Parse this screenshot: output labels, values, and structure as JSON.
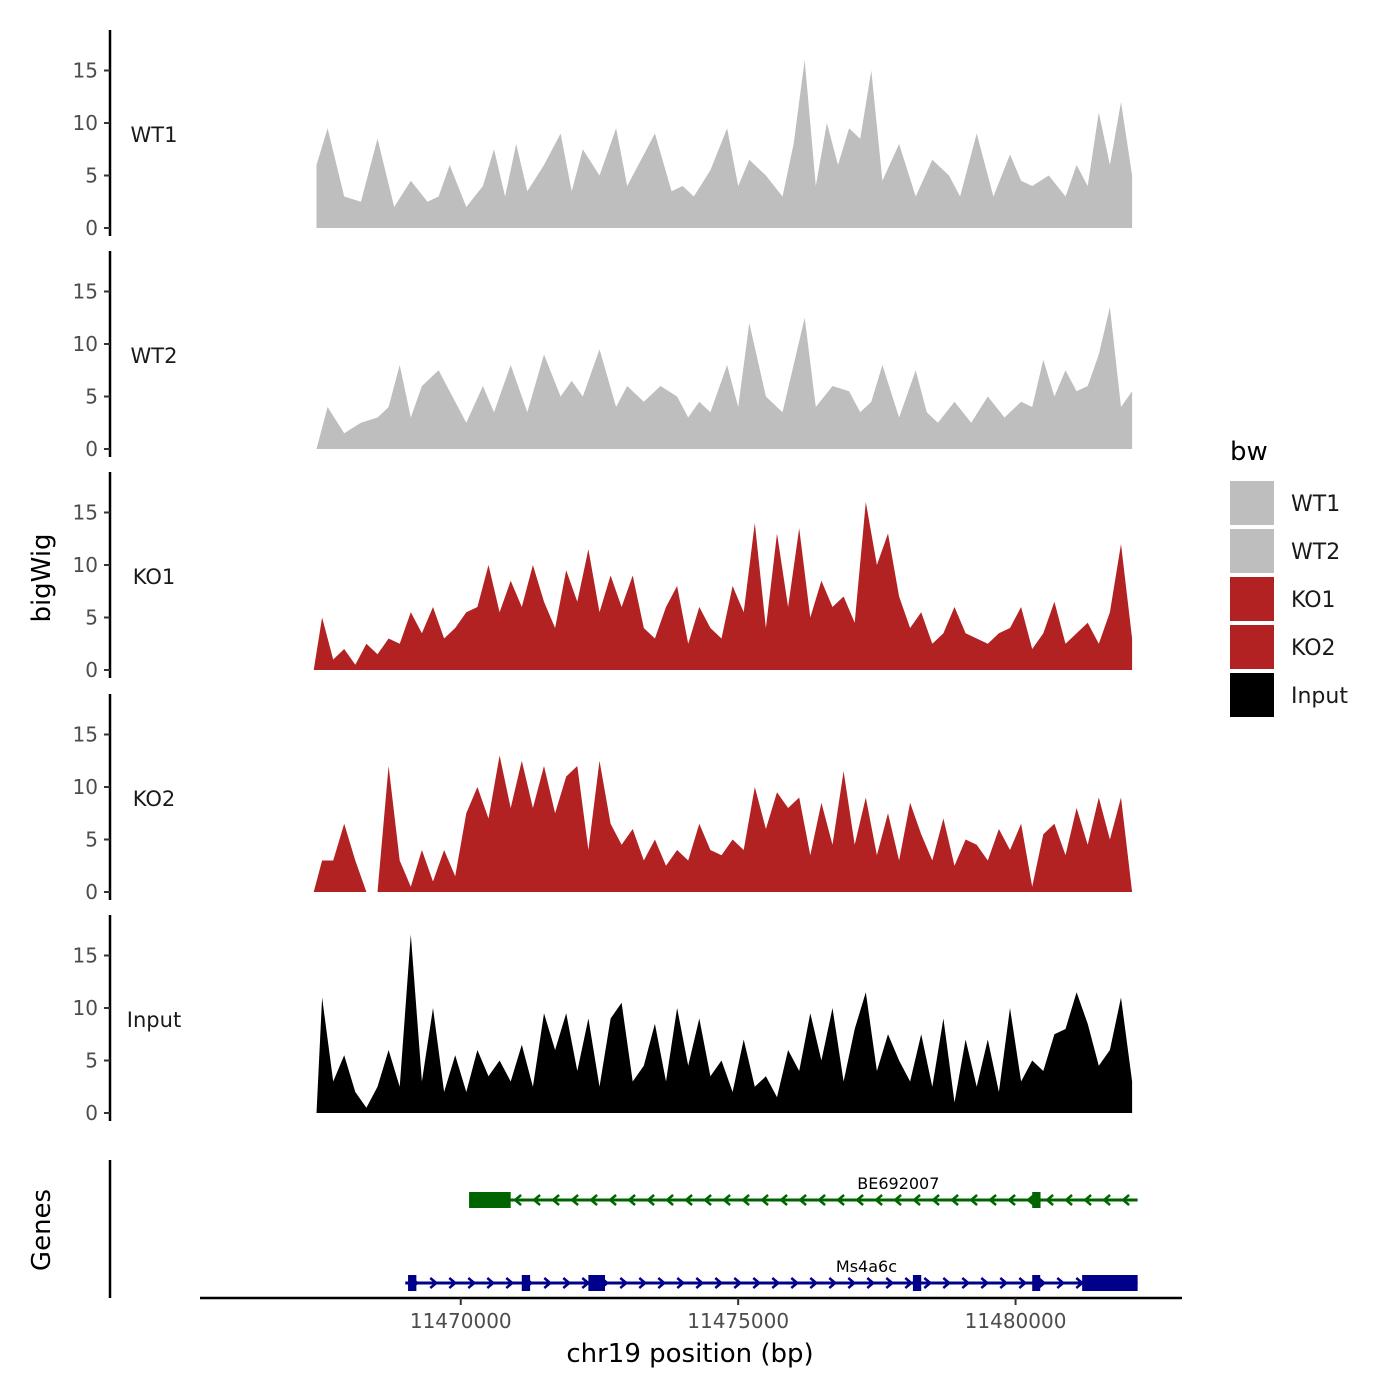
{
  "chart_data": {
    "type": "area",
    "xlabel": "chr19 position (bp)",
    "ylabel": "bigWig",
    "xlim": [
      11465300,
      11483000
    ],
    "ylim": [
      0,
      18.5
    ],
    "x_ticks": [
      11470000,
      11475000,
      11480000
    ],
    "x_tick_labels": [
      "11470000",
      "11475000",
      "11480000"
    ],
    "y_ticks": [
      0,
      5,
      10,
      15
    ],
    "y_tick_labels": [
      "0",
      "5",
      "10",
      "15"
    ],
    "grid": false,
    "legend": {
      "title": "bw",
      "position": "right",
      "entries": [
        {
          "name": "WT1",
          "color": "#bebebe"
        },
        {
          "name": "WT2",
          "color": "#bebebe"
        },
        {
          "name": "KO1",
          "color": "#b22222"
        },
        {
          "name": "KO2",
          "color": "#b22222"
        },
        {
          "name": "Input",
          "color": "#000000"
        }
      ]
    },
    "series": [
      {
        "name": "WT1",
        "color": "#bebebe",
        "x": [
          11467400,
          11467600,
          11467900,
          11468200,
          11468500,
          11468800,
          11469100,
          11469400,
          11469600,
          11469800,
          11470100,
          11470400,
          11470600,
          11470800,
          11471000,
          11471200,
          11471500,
          11471800,
          11472000,
          11472200,
          11472500,
          11472800,
          11473000,
          11473200,
          11473500,
          11473800,
          11474000,
          11474200,
          11474500,
          11474800,
          11475000,
          11475200,
          11475500,
          11475800,
          11476000,
          11476200,
          11476400,
          11476600,
          11476800,
          11477000,
          11477200,
          11477400,
          11477600,
          11477900,
          11478200,
          11478500,
          11478800,
          11479000,
          11479300,
          11479600,
          11479900,
          11480100,
          11480300,
          11480600,
          11480900,
          11481100,
          11481300,
          11481500,
          11481700,
          11481900,
          11482100
        ],
        "values": [
          6,
          9.5,
          3,
          2.5,
          8.5,
          2,
          4.5,
          2.5,
          3,
          6,
          2,
          4,
          7.5,
          3,
          8,
          3.5,
          6,
          9,
          3.5,
          7.5,
          5,
          9.5,
          4,
          6,
          9,
          3.5,
          4,
          3,
          5.5,
          9.5,
          4,
          6.5,
          5,
          3,
          8,
          16,
          4,
          10,
          6,
          9.5,
          8.5,
          15,
          4.5,
          8,
          3,
          6.5,
          5,
          3,
          9,
          3,
          7,
          4.5,
          4,
          5,
          3,
          6,
          4,
          11,
          6,
          12,
          5
        ]
      },
      {
        "name": "WT2",
        "color": "#bebebe",
        "x": [
          11467400,
          11467600,
          11467900,
          11468200,
          11468500,
          11468700,
          11468900,
          11469100,
          11469300,
          11469600,
          11469900,
          11470100,
          11470400,
          11470600,
          11470900,
          11471200,
          11471500,
          11471800,
          11472000,
          11472200,
          11472500,
          11472800,
          11473000,
          11473300,
          11473600,
          11473900,
          11474100,
          11474300,
          11474500,
          11474800,
          11475000,
          11475200,
          11475500,
          11475800,
          11476000,
          11476200,
          11476400,
          11476700,
          11477000,
          11477200,
          11477400,
          11477600,
          11477900,
          11478200,
          11478400,
          11478600,
          11478900,
          11479200,
          11479500,
          11479800,
          11480100,
          11480300,
          11480500,
          11480700,
          11480900,
          11481100,
          11481300,
          11481500,
          11481700,
          11481900,
          11482100
        ],
        "values": [
          0,
          4,
          1.5,
          2.5,
          3,
          4,
          8,
          3,
          6,
          7.5,
          4.5,
          2.5,
          6,
          3.5,
          8,
          3.5,
          9,
          5,
          6.5,
          5,
          9.5,
          4,
          6,
          4.5,
          6,
          5,
          3,
          4.5,
          3.5,
          8,
          4,
          12,
          5,
          3.5,
          8,
          12.5,
          4,
          6,
          5.5,
          3.5,
          4.5,
          8,
          3,
          7.5,
          3.5,
          2.5,
          4.5,
          2.5,
          5,
          3,
          4.5,
          4,
          8.5,
          5,
          7.5,
          5.5,
          6,
          9,
          13.5,
          4,
          5.5
        ]
      },
      {
        "name": "KO1",
        "color": "#b22222",
        "x": [
          11467350,
          11467500,
          11467700,
          11467900,
          11468100,
          11468300,
          11468500,
          11468700,
          11468900,
          11469100,
          11469300,
          11469500,
          11469700,
          11469900,
          11470100,
          11470300,
          11470500,
          11470700,
          11470900,
          11471100,
          11471300,
          11471500,
          11471700,
          11471900,
          11472100,
          11472300,
          11472500,
          11472700,
          11472900,
          11473100,
          11473300,
          11473500,
          11473700,
          11473900,
          11474100,
          11474300,
          11474500,
          11474700,
          11474900,
          11475100,
          11475300,
          11475500,
          11475700,
          11475900,
          11476100,
          11476300,
          11476500,
          11476700,
          11476900,
          11477100,
          11477300,
          11477500,
          11477700,
          11477900,
          11478100,
          11478300,
          11478500,
          11478700,
          11478900,
          11479100,
          11479300,
          11479500,
          11479700,
          11479900,
          11480100,
          11480300,
          11480500,
          11480700,
          11480900,
          11481100,
          11481300,
          11481500,
          11481700,
          11481900,
          11482100
        ],
        "values": [
          0,
          5,
          1,
          2,
          0.5,
          2.5,
          1.5,
          3,
          2.5,
          5.5,
          3.5,
          6,
          3,
          4,
          5.5,
          6,
          10,
          5.5,
          8.5,
          6,
          10,
          6.5,
          4,
          9.5,
          6.5,
          11.5,
          5.5,
          9,
          6,
          9,
          4,
          3,
          6,
          8,
          2.5,
          6,
          4,
          3,
          8,
          5.5,
          14,
          4,
          13,
          6,
          13.5,
          5,
          8.5,
          6,
          7,
          4.5,
          16,
          10,
          13,
          7,
          4,
          5.5,
          2.5,
          3.5,
          6,
          3.5,
          3,
          2.5,
          3.5,
          4,
          6,
          2,
          3.5,
          6.5,
          2.5,
          3.5,
          4.5,
          2.5,
          5.5,
          12,
          3
        ]
      },
      {
        "name": "KO2",
        "color": "#b22222",
        "x": [
          11467350,
          11467500,
          11467700,
          11467900,
          11468100,
          11468300,
          11468500,
          11468700,
          11468900,
          11469100,
          11469300,
          11469500,
          11469700,
          11469900,
          11470100,
          11470300,
          11470500,
          11470700,
          11470900,
          11471100,
          11471300,
          11471500,
          11471700,
          11471900,
          11472100,
          11472300,
          11472500,
          11472700,
          11472900,
          11473100,
          11473300,
          11473500,
          11473700,
          11473900,
          11474100,
          11474300,
          11474500,
          11474700,
          11474900,
          11475100,
          11475300,
          11475500,
          11475700,
          11475900,
          11476100,
          11476300,
          11476500,
          11476700,
          11476900,
          11477100,
          11477300,
          11477500,
          11477700,
          11477900,
          11478100,
          11478300,
          11478500,
          11478700,
          11478900,
          11479100,
          11479300,
          11479500,
          11479700,
          11479900,
          11480100,
          11480300,
          11480500,
          11480700,
          11480900,
          11481100,
          11481300,
          11481500,
          11481700,
          11481900,
          11482100
        ],
        "values": [
          0,
          3,
          3,
          6.5,
          3,
          0,
          0,
          12,
          3,
          0.5,
          4,
          1,
          4,
          1.5,
          7.5,
          10,
          7,
          13,
          8,
          12.5,
          8,
          12,
          7.5,
          11,
          12,
          4,
          12.5,
          6.5,
          4.5,
          6,
          3,
          5,
          2.5,
          4,
          3,
          6.5,
          4,
          3.5,
          5,
          4,
          10,
          6,
          9.5,
          8,
          9,
          3.5,
          8.5,
          4.5,
          11.5,
          4.5,
          9,
          3.5,
          7.5,
          3,
          8.5,
          5.5,
          3,
          7,
          2.5,
          5,
          4.5,
          3,
          6,
          4,
          6.5,
          0.5,
          5.5,
          6.5,
          3.5,
          8,
          4.5,
          9,
          5,
          9,
          0
        ]
      },
      {
        "name": "Input",
        "color": "#000000",
        "x": [
          11467400,
          11467500,
          11467700,
          11467900,
          11468100,
          11468300,
          11468500,
          11468700,
          11468900,
          11469100,
          11469300,
          11469500,
          11469700,
          11469900,
          11470100,
          11470300,
          11470500,
          11470700,
          11470900,
          11471100,
          11471300,
          11471500,
          11471700,
          11471900,
          11472100,
          11472300,
          11472500,
          11472700,
          11472900,
          11473100,
          11473300,
          11473500,
          11473700,
          11473900,
          11474100,
          11474300,
          11474500,
          11474700,
          11474900,
          11475100,
          11475300,
          11475500,
          11475700,
          11475900,
          11476100,
          11476300,
          11476500,
          11476700,
          11476900,
          11477100,
          11477300,
          11477500,
          11477700,
          11477900,
          11478100,
          11478300,
          11478500,
          11478700,
          11478900,
          11479100,
          11479300,
          11479500,
          11479700,
          11479900,
          11480100,
          11480300,
          11480500,
          11480700,
          11480900,
          11481100,
          11481300,
          11481500,
          11481700,
          11481900,
          11482100
        ],
        "values": [
          0,
          11,
          3,
          5.5,
          2,
          0.5,
          2.5,
          6,
          2.5,
          17,
          3,
          10,
          2,
          5.5,
          2,
          6,
          3.5,
          5,
          3,
          6.5,
          2.5,
          9.5,
          6,
          9.5,
          4,
          9,
          2.5,
          9,
          10.5,
          3,
          4.5,
          8.5,
          3,
          10,
          4.5,
          9,
          3.5,
          5,
          2,
          7,
          2.5,
          3.5,
          1.5,
          6,
          4,
          9.5,
          5,
          10,
          3,
          8,
          11.5,
          4,
          7.5,
          5,
          3,
          7.5,
          2.5,
          9,
          1,
          7,
          2.5,
          7,
          2,
          10,
          3,
          5,
          4,
          7.5,
          8,
          11.5,
          8.5,
          4.5,
          6,
          11,
          3
        ]
      }
    ],
    "genes_track": {
      "title": "Genes",
      "genes": [
        {
          "name": "BE692007",
          "strand": "-",
          "color": "#006400",
          "start": 11470150,
          "end": 11482200,
          "exons": [
            [
              11470150,
              11470900
            ],
            [
              11480300,
              11480450
            ]
          ]
        },
        {
          "name": "Ms4a6c",
          "strand": "+",
          "color": "#00008b",
          "start": 11469000,
          "end": 11482200,
          "exons": [
            [
              11469050,
              11469200
            ],
            [
              11471100,
              11471250
            ],
            [
              11472300,
              11472600
            ],
            [
              11478150,
              11478300
            ],
            [
              11480300,
              11480400
            ],
            [
              11481200,
              11482200
            ]
          ]
        }
      ]
    }
  }
}
